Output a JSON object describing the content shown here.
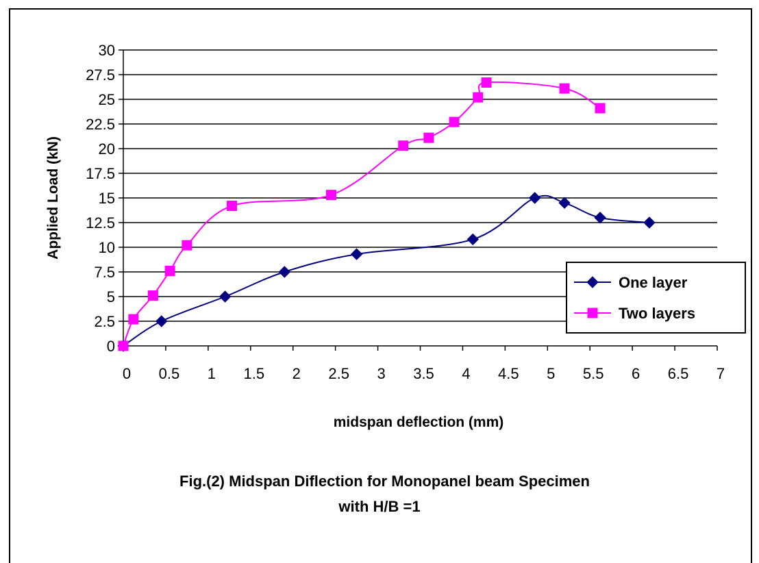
{
  "chart_data": {
    "type": "line",
    "xlabel": "midspan deflection (mm)",
    "ylabel": "Applied Load (kN)",
    "xlim": [
      0,
      7
    ],
    "ylim": [
      0,
      30
    ],
    "xticks": [
      "0",
      "0.5",
      "1",
      "1.5",
      "2",
      "2.5",
      "3",
      "3.5",
      "4",
      "4.5",
      "5",
      "5.5",
      "6",
      "6.5",
      "7"
    ],
    "yticks": [
      "0",
      "2.5",
      "5",
      "7.5",
      "10",
      "12.5",
      "15",
      "17.5",
      "20",
      "22.5",
      "25",
      "27.5",
      "30"
    ],
    "grid": "horizontal",
    "legend_position": "right",
    "series": [
      {
        "name": "One layer",
        "color": "#000080",
        "marker": "diamond",
        "x": [
          0,
          0.45,
          1.2,
          1.9,
          2.75,
          4.12,
          4.85,
          5.2,
          5.62,
          6.2
        ],
        "y": [
          0,
          2.5,
          5,
          7.5,
          9.3,
          10.8,
          15,
          14.5,
          13,
          12.5
        ]
      },
      {
        "name": "Two layers",
        "color": "#ff00ff",
        "marker": "square",
        "x": [
          0,
          0.12,
          0.35,
          0.55,
          0.75,
          1.28,
          2.45,
          3.3,
          3.6,
          3.9,
          4.18,
          4.28,
          5.2,
          5.62
        ],
        "y": [
          0,
          2.7,
          5.1,
          7.6,
          10.2,
          14.2,
          15.3,
          20.3,
          21.1,
          22.7,
          25.2,
          26.7,
          26.1,
          24.1
        ]
      }
    ]
  },
  "caption": {
    "line1": "Fig.(2) Midspan Diflection for Monopanel beam Specimen",
    "line2": "with H/B =1"
  }
}
